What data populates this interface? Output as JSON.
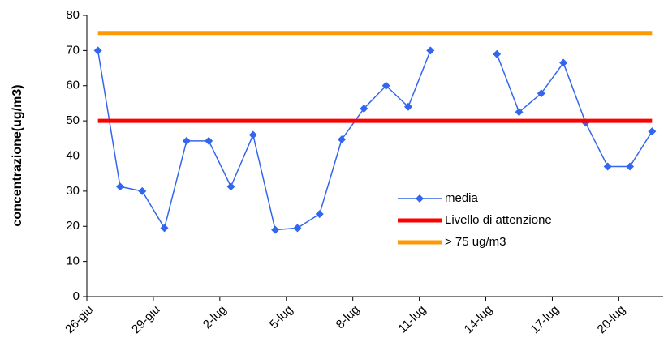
{
  "chart_data": {
    "type": "line",
    "y_label": "concentrazione(ug/m3)",
    "categories": [
      "26-giu",
      null,
      null,
      "29-giu",
      null,
      null,
      "2-lug",
      null,
      null,
      "5-lug",
      null,
      null,
      "8-lug",
      null,
      null,
      "11-lug",
      null,
      null,
      "14-lug",
      null,
      null,
      "17-lug",
      null,
      null,
      "20-lug",
      null
    ],
    "series": [
      {
        "name": "media",
        "color": "#3366ee",
        "marker": "diamond",
        "values": [
          70,
          31.3,
          30,
          19.5,
          44.3,
          44.3,
          31.3,
          46,
          19,
          19.5,
          23.5,
          44.7,
          53.5,
          60,
          54,
          70,
          null,
          null,
          69,
          52.5,
          57.8,
          66.5,
          49.5,
          37,
          37,
          47
        ]
      },
      {
        "name": "Livello di attenzione",
        "color": "#ff0000",
        "values": [
          50,
          50,
          50,
          50,
          50,
          50,
          50,
          50,
          50,
          50,
          50,
          50,
          50,
          50,
          50,
          50,
          50,
          50,
          50,
          50,
          50,
          50,
          50,
          50,
          50,
          50
        ]
      },
      {
        "name": "> 75 ug/m3",
        "color": "#ff9900",
        "values": [
          75,
          75,
          75,
          75,
          75,
          75,
          75,
          75,
          75,
          75,
          75,
          75,
          75,
          75,
          75,
          75,
          75,
          75,
          75,
          75,
          75,
          75,
          75,
          75,
          75,
          75
        ]
      }
    ],
    "ylim": [
      0,
      80
    ],
    "yticks": [
      0,
      10,
      20,
      30,
      40,
      50,
      60,
      70,
      80
    ]
  }
}
